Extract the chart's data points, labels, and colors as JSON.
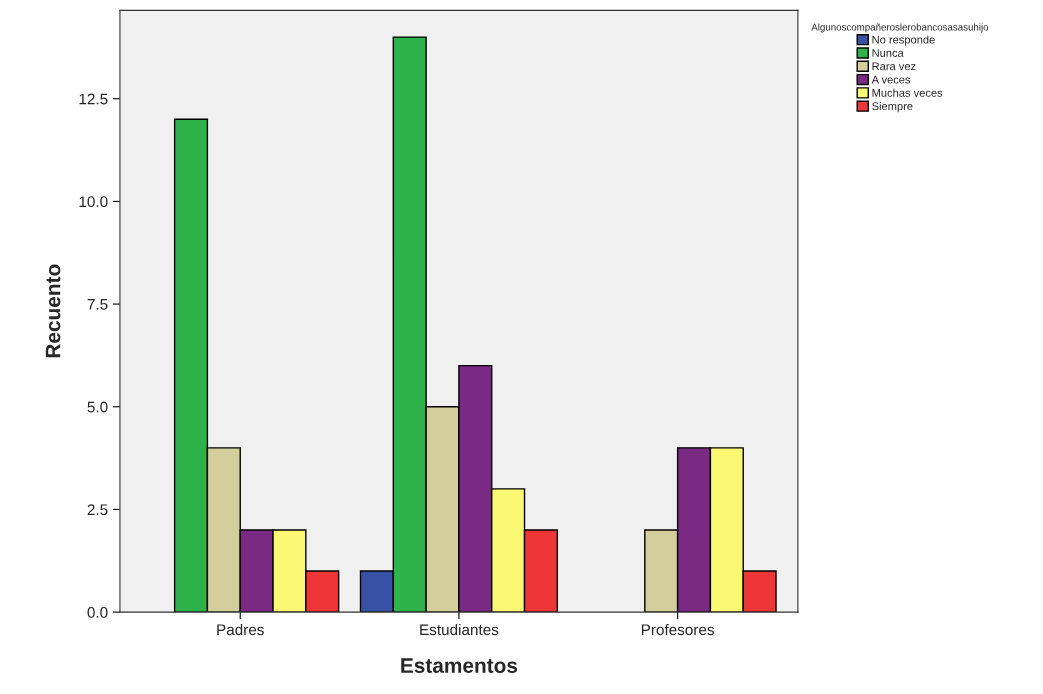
{
  "chart_data": {
    "type": "bar",
    "xlabel": "Estamentos",
    "ylabel": "Recuento",
    "legend_title": "Algunoscompañeroslerobancosasasuhijo",
    "categories": [
      "Padres",
      "Estudiantes",
      "Profesores"
    ],
    "series": [
      {
        "name": "No responde",
        "color": "#3953a4",
        "values": [
          null,
          1,
          null
        ]
      },
      {
        "name": "Nunca",
        "color": "#2db34a",
        "values": [
          12,
          14,
          null
        ]
      },
      {
        "name": "Rara vez",
        "color": "#d3ce9b",
        "values": [
          4,
          5,
          2
        ]
      },
      {
        "name": "A veces",
        "color": "#7b2a83",
        "values": [
          2,
          6,
          4
        ]
      },
      {
        "name": "Muchas veces",
        "color": "#fbf873",
        "values": [
          2,
          3,
          4
        ]
      },
      {
        "name": "Siempre",
        "color": "#ee3537",
        "values": [
          1,
          2,
          1
        ]
      }
    ],
    "ylim": [
      0,
      14.65
    ],
    "yticks": [
      {
        "value": 0,
        "label": "0.0"
      },
      {
        "value": 2.5,
        "label": "2.5"
      },
      {
        "value": 5,
        "label": "5.0"
      },
      {
        "value": 7.5,
        "label": "7.5"
      },
      {
        "value": 10,
        "label": "10.0"
      },
      {
        "value": 12.5,
        "label": "12.5"
      }
    ],
    "grid": false,
    "legend": "top right"
  }
}
